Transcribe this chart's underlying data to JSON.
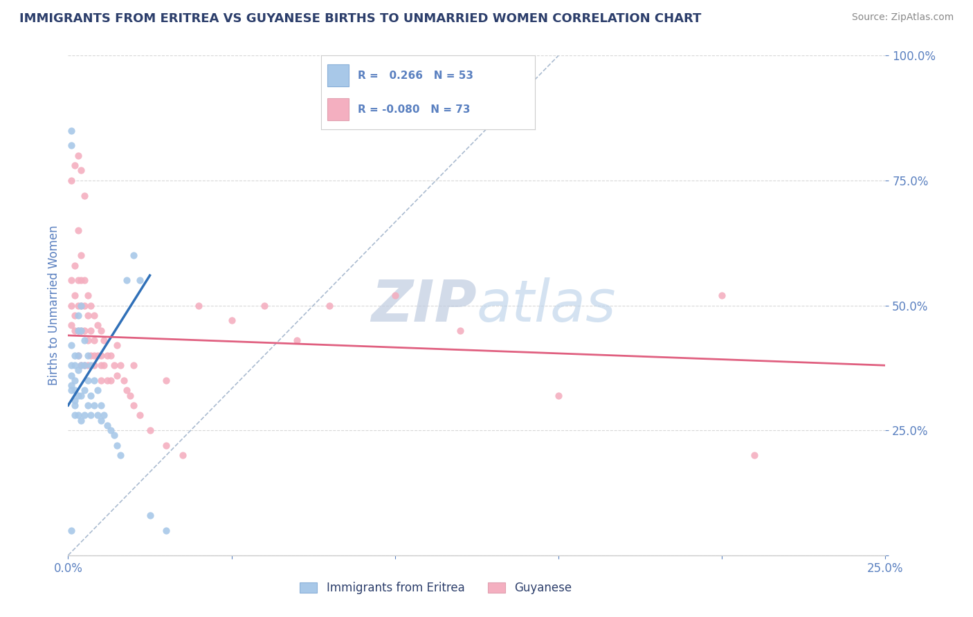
{
  "title": "IMMIGRANTS FROM ERITREA VS GUYANESE BIRTHS TO UNMARRIED WOMEN CORRELATION CHART",
  "source_text": "Source: ZipAtlas.com",
  "ylabel": "Births to Unmarried Women",
  "xlim": [
    0.0,
    0.25
  ],
  "ylim": [
    0.0,
    1.0
  ],
  "xticks": [
    0.0,
    0.05,
    0.1,
    0.15,
    0.2,
    0.25
  ],
  "yticks": [
    0.0,
    0.25,
    0.5,
    0.75,
    1.0
  ],
  "xtick_labels": [
    "0.0%",
    "",
    "",
    "",
    "",
    "25.0%"
  ],
  "ytick_labels": [
    "",
    "25.0%",
    "50.0%",
    "75.0%",
    "100.0%"
  ],
  "blue_R": 0.266,
  "blue_N": 53,
  "pink_R": -0.08,
  "pink_N": 73,
  "blue_color": "#a8c8e8",
  "pink_color": "#f4afc0",
  "blue_line_color": "#3070b8",
  "pink_line_color": "#e06080",
  "ref_line_color": "#aabbd0",
  "grid_color": "#d8d8d8",
  "axis_label_color": "#5a80c0",
  "title_color": "#2c3e6b",
  "source_color": "#888888",
  "watermark_color": "#c8d8f0",
  "blue_scatter_x": [
    0.001,
    0.001,
    0.001,
    0.001,
    0.001,
    0.002,
    0.002,
    0.002,
    0.002,
    0.002,
    0.002,
    0.002,
    0.003,
    0.003,
    0.003,
    0.003,
    0.003,
    0.003,
    0.004,
    0.004,
    0.004,
    0.004,
    0.004,
    0.005,
    0.005,
    0.005,
    0.005,
    0.006,
    0.006,
    0.006,
    0.007,
    0.007,
    0.007,
    0.008,
    0.008,
    0.009,
    0.009,
    0.01,
    0.01,
    0.011,
    0.012,
    0.013,
    0.014,
    0.015,
    0.016,
    0.018,
    0.02,
    0.022,
    0.025,
    0.03,
    0.001,
    0.001,
    0.001
  ],
  "blue_scatter_y": [
    0.42,
    0.38,
    0.36,
    0.34,
    0.33,
    0.4,
    0.38,
    0.35,
    0.33,
    0.31,
    0.3,
    0.28,
    0.48,
    0.45,
    0.4,
    0.37,
    0.32,
    0.28,
    0.5,
    0.45,
    0.38,
    0.32,
    0.27,
    0.43,
    0.38,
    0.33,
    0.28,
    0.4,
    0.35,
    0.3,
    0.38,
    0.32,
    0.28,
    0.35,
    0.3,
    0.33,
    0.28,
    0.3,
    0.27,
    0.28,
    0.26,
    0.25,
    0.24,
    0.22,
    0.2,
    0.55,
    0.6,
    0.55,
    0.08,
    0.05,
    0.85,
    0.82,
    0.05
  ],
  "pink_scatter_x": [
    0.001,
    0.001,
    0.001,
    0.002,
    0.002,
    0.002,
    0.002,
    0.003,
    0.003,
    0.003,
    0.003,
    0.003,
    0.004,
    0.004,
    0.004,
    0.004,
    0.004,
    0.005,
    0.005,
    0.005,
    0.005,
    0.006,
    0.006,
    0.006,
    0.006,
    0.007,
    0.007,
    0.007,
    0.008,
    0.008,
    0.008,
    0.009,
    0.009,
    0.01,
    0.01,
    0.01,
    0.011,
    0.011,
    0.012,
    0.012,
    0.013,
    0.013,
    0.014,
    0.015,
    0.015,
    0.016,
    0.017,
    0.018,
    0.019,
    0.02,
    0.022,
    0.025,
    0.03,
    0.035,
    0.04,
    0.05,
    0.06,
    0.07,
    0.08,
    0.1,
    0.12,
    0.15,
    0.2,
    0.21,
    0.001,
    0.002,
    0.003,
    0.004,
    0.005,
    0.008,
    0.01,
    0.02,
    0.03
  ],
  "pink_scatter_y": [
    0.55,
    0.5,
    0.46,
    0.58,
    0.52,
    0.48,
    0.45,
    0.65,
    0.55,
    0.5,
    0.45,
    0.4,
    0.6,
    0.55,
    0.5,
    0.45,
    0.38,
    0.55,
    0.5,
    0.45,
    0.38,
    0.52,
    0.48,
    0.43,
    0.38,
    0.5,
    0.45,
    0.4,
    0.48,
    0.43,
    0.38,
    0.46,
    0.4,
    0.45,
    0.4,
    0.35,
    0.43,
    0.38,
    0.4,
    0.35,
    0.4,
    0.35,
    0.38,
    0.42,
    0.36,
    0.38,
    0.35,
    0.33,
    0.32,
    0.3,
    0.28,
    0.25,
    0.22,
    0.2,
    0.5,
    0.47,
    0.5,
    0.43,
    0.5,
    0.52,
    0.45,
    0.32,
    0.52,
    0.2,
    0.75,
    0.78,
    0.8,
    0.77,
    0.72,
    0.4,
    0.38,
    0.38,
    0.35
  ],
  "blue_trend_x": [
    0.0,
    0.025
  ],
  "blue_trend_y": [
    0.3,
    0.56
  ],
  "pink_trend_x": [
    0.0,
    0.25
  ],
  "pink_trend_y": [
    0.44,
    0.38
  ],
  "ref_line_x": [
    0.0,
    0.15
  ],
  "ref_line_y": [
    0.0,
    1.0
  ]
}
